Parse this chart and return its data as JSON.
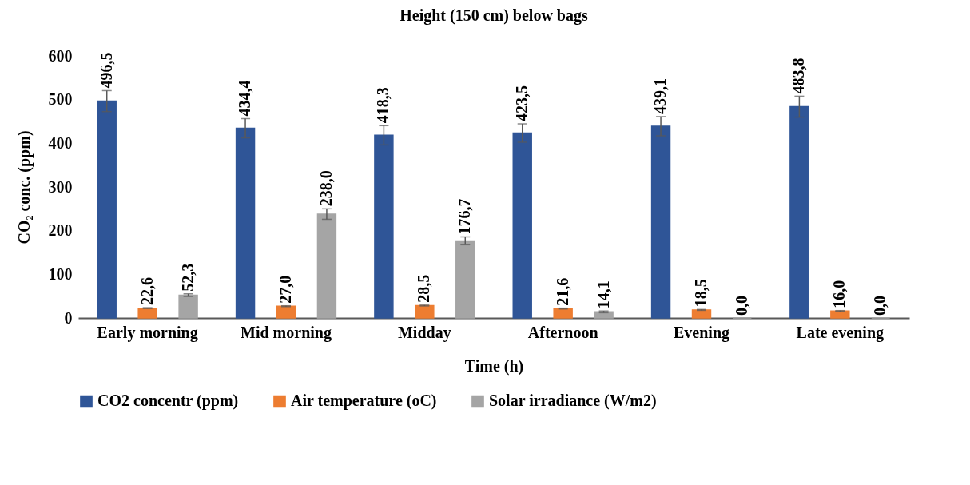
{
  "chart_data": {
    "type": "bar",
    "title": "Height  (150 cm) below bags",
    "xlabel": "Time (h)",
    "ylabel": "CO₂ conc. (ppm)",
    "categories": [
      "Early morning",
      "Mid morning",
      "Midday",
      "Afternoon",
      "Evening",
      "Late evening"
    ],
    "series": [
      {
        "name": "CO2 concentr (ppm)",
        "color": "#2f5597",
        "values": [
          496.5,
          434.4,
          418.3,
          423.5,
          439.1,
          483.8
        ],
        "errors": [
          24,
          22,
          22,
          21,
          22,
          24
        ],
        "value_labels": [
          "496,5",
          "434,4",
          "418,3",
          "423,5",
          "439,1",
          "483,8"
        ]
      },
      {
        "name": "Air temperature (oC)",
        "color": "#ed7d31",
        "values": [
          22.6,
          27.0,
          28.5,
          21.6,
          18.5,
          16.0
        ],
        "errors": [
          1,
          1,
          1,
          1,
          1,
          1
        ],
        "value_labels": [
          "22,6",
          "27,0",
          "28,5",
          "21,6",
          "18,5",
          "16,0"
        ]
      },
      {
        "name": "Solar irradiance (W/m2)",
        "color": "#a5a5a5",
        "values": [
          52.3,
          238.0,
          176.7,
          14.1,
          0.0,
          0.0
        ],
        "errors": [
          3,
          12,
          9,
          2,
          null,
          null
        ],
        "value_labels": [
          "52,3",
          "238,0",
          "176,7",
          "14,1",
          "0,0",
          "0,0"
        ]
      }
    ],
    "ylim": [
      0,
      600
    ],
    "yticks": [
      0,
      100,
      200,
      300,
      400,
      500,
      600
    ],
    "grid": false,
    "legend": "bottom"
  }
}
